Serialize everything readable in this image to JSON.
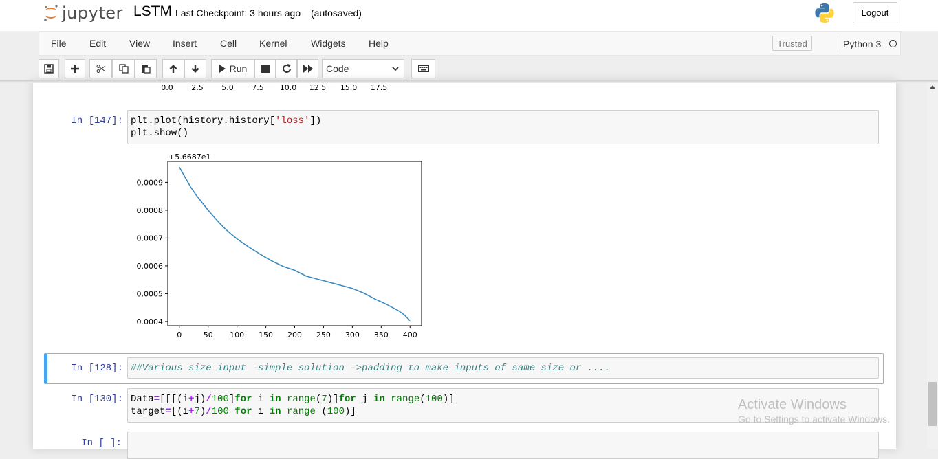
{
  "header": {
    "logo_text": "jupyter",
    "notebook_name": "LSTM",
    "checkpoint": "Last Checkpoint: 3 hours ago",
    "autosave": "(autosaved)",
    "logout_label": "Logout"
  },
  "menu": {
    "items": [
      "File",
      "Edit",
      "View",
      "Insert",
      "Cell",
      "Kernel",
      "Widgets",
      "Help"
    ],
    "trusted_label": "Trusted",
    "kernel_name": "Python 3"
  },
  "toolbar": {
    "run_label": "Run",
    "cell_type": "Code"
  },
  "prev_output_ticks": [
    "0.0",
    "2.5",
    "5.0",
    "7.5",
    "10.0",
    "12.5",
    "15.0",
    "17.5"
  ],
  "cells": [
    {
      "prompt": "In [147]:",
      "code_line1": "plt.plot(history.history['loss'])",
      "code_line2": "plt.show()"
    },
    {
      "prompt": "In [128]:",
      "comment": "##Various size input -simple solution ->padding to make inputs of same size or ...."
    },
    {
      "prompt": "In [130]:",
      "code_line1": "Data=[[[(i+j)/100]for i in range(7)]for j in range(100)]",
      "code_line2": "target=[(i+7)/100 for i in range (100)]"
    },
    {
      "prompt": "In [ ]:"
    }
  ],
  "chart_data": {
    "type": "line",
    "offset_label": "+5.6687e1",
    "xlim": [
      -20,
      420
    ],
    "ylim": [
      0.000385,
      0.000975
    ],
    "x_ticks": [
      0,
      50,
      100,
      150,
      200,
      250,
      300,
      350,
      400
    ],
    "y_ticks": [
      0.0004,
      0.0005,
      0.0006,
      0.0007,
      0.0008,
      0.0009
    ],
    "y_tick_labels": [
      "0.0004",
      "0.0005",
      "0.0006",
      "0.0007",
      "0.0008",
      "0.0009"
    ],
    "line_color": "#3b8bc2",
    "series": [
      {
        "x": [
          0,
          10,
          20,
          30,
          40,
          50,
          60,
          70,
          80,
          90,
          100,
          120,
          140,
          160,
          180,
          200,
          220,
          240,
          260,
          280,
          300,
          320,
          340,
          360,
          380,
          390,
          400
        ],
        "y": [
          0.000955,
          0.000918,
          0.000882,
          0.000852,
          0.000826,
          0.0008,
          0.000776,
          0.000753,
          0.000732,
          0.000714,
          0.000697,
          0.000668,
          0.000642,
          0.000618,
          0.000598,
          0.000584,
          0.000563,
          0.000552,
          0.000541,
          0.00053,
          0.000519,
          0.000502,
          0.00048,
          0.000461,
          0.000439,
          0.000424,
          0.000403
        ]
      }
    ]
  },
  "watermark": {
    "line1": "Activate Windows",
    "line2": "Go to Settings to activate Windows."
  }
}
